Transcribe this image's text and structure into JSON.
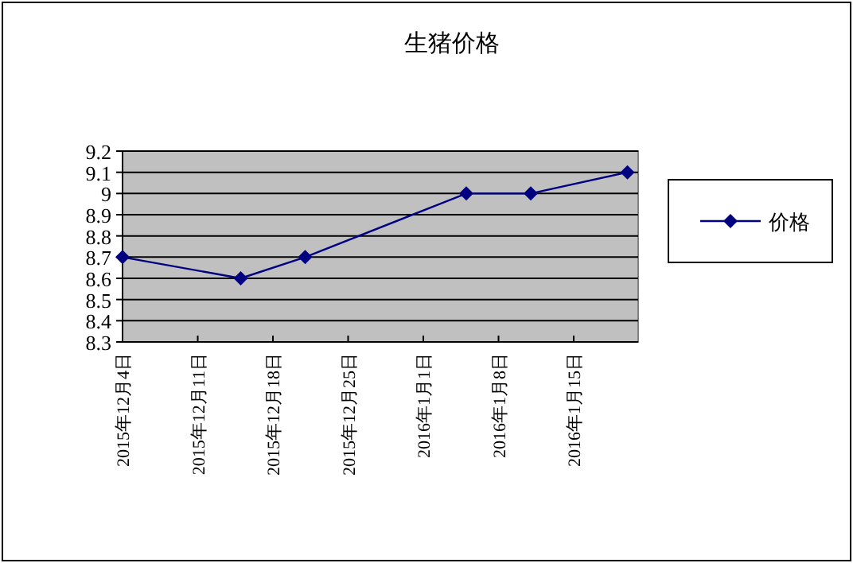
{
  "chart_data": {
    "type": "line",
    "title": "生猪价格",
    "x": [
      "2015-12-04",
      "2015-12-15",
      "2015-12-21",
      "2016-01-05",
      "2016-01-11",
      "2016-01-20"
    ],
    "series": [
      {
        "name": "价格",
        "color": "#000080",
        "values": [
          8.7,
          8.6,
          8.7,
          9.0,
          9.0,
          9.1
        ]
      }
    ],
    "xlim": [
      "2015-12-04",
      "2016-01-21"
    ],
    "xticks": [
      {
        "value": "2015-12-04",
        "label": "2015年12月4日"
      },
      {
        "value": "2015-12-11",
        "label": "2015年12月11日"
      },
      {
        "value": "2015-12-18",
        "label": "2015年12月18日"
      },
      {
        "value": "2015-12-25",
        "label": "2015年12月25日"
      },
      {
        "value": "2016-01-01",
        "label": "2016年1月1日"
      },
      {
        "value": "2016-01-08",
        "label": "2016年1月8日"
      },
      {
        "value": "2016-01-15",
        "label": "2016年1月15日"
      }
    ],
    "ylim": [
      8.3,
      9.2
    ],
    "yticks": [
      8.3,
      8.4,
      8.5,
      8.6,
      8.7,
      8.8,
      8.9,
      9,
      9.1,
      9.2
    ],
    "grid": "y",
    "legend": "right",
    "marker": "diamond",
    "line_style": "solid"
  }
}
